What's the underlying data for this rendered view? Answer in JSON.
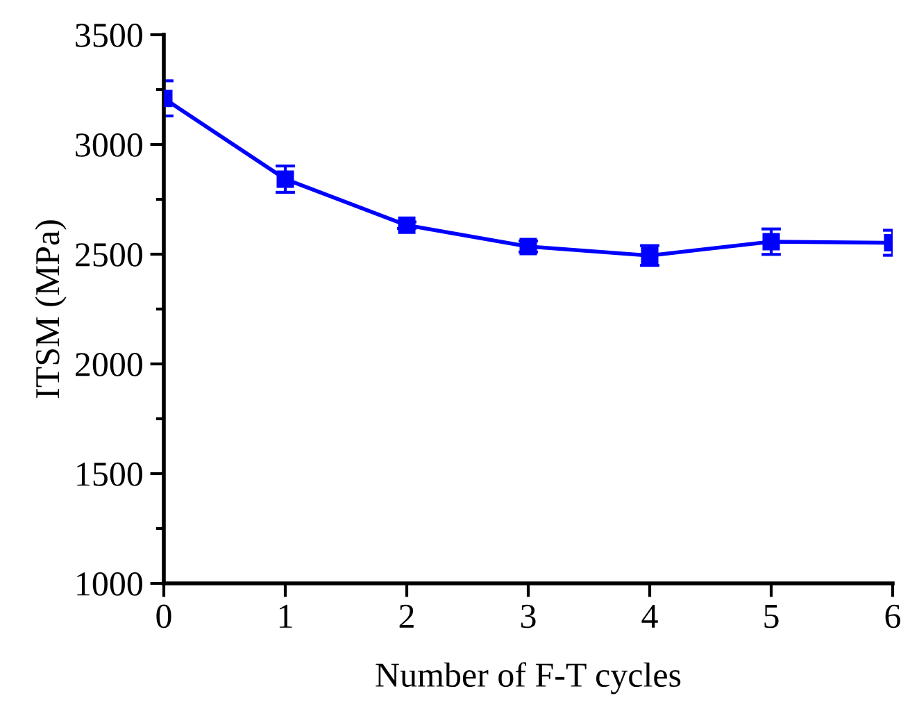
{
  "chart_data": {
    "type": "line",
    "xlabel": "Number of F-T cycles",
    "ylabel": "ITSM (MPa)",
    "x": [
      0,
      1,
      2,
      3,
      4,
      5,
      6
    ],
    "series": [
      {
        "color": "#0000ff",
        "values": [
          3210,
          2842,
          2632,
          2535,
          2494,
          2557,
          2552
        ],
        "errors": [
          80,
          60,
          15,
          25,
          45,
          58,
          57
        ]
      }
    ],
    "xlim": [
      0,
      6
    ],
    "xticks": [
      0,
      1,
      2,
      3,
      4,
      5,
      6
    ],
    "ylim": [
      1000,
      3500
    ],
    "yticks": [
      1000,
      1500,
      2000,
      2500,
      3000,
      3500
    ],
    "marker": "square",
    "line_style": "solid",
    "grid": false,
    "legend": false
  }
}
